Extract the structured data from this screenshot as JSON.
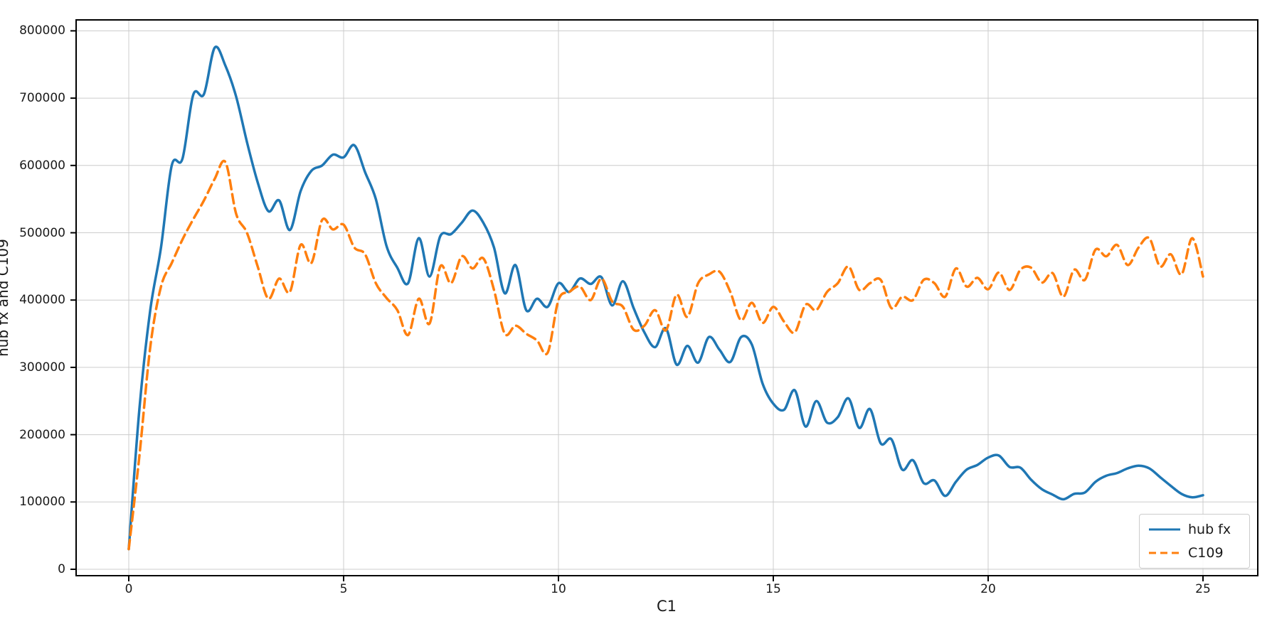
{
  "chart_data": {
    "type": "line",
    "title": "",
    "xlabel": "C1",
    "ylabel": "hub fx and C109",
    "grid": true,
    "legend_position": "lower right",
    "xticks": [
      0,
      5,
      10,
      15,
      20,
      25
    ],
    "xtick_labels": [
      "0",
      "5",
      "10",
      "15",
      "20",
      "25"
    ],
    "yticks": [
      0,
      100000,
      200000,
      300000,
      400000,
      500000,
      600000,
      700000,
      800000
    ],
    "ytick_labels": [
      "0",
      "100000",
      "200000",
      "300000",
      "400000",
      "500000",
      "600000",
      "700000",
      "800000"
    ],
    "xlim": [
      -1.2,
      26.3
    ],
    "ylim": [
      -10000,
      816000
    ],
    "x_start": 0,
    "x_step": 0.25,
    "series": [
      {
        "name": "hub fx",
        "color": "#1f77b4",
        "style": "solid",
        "values": [
          30000,
          240000,
          385000,
          478000,
          600000,
          610000,
          705000,
          706000,
          775000,
          748000,
          702000,
          635000,
          575000,
          532000,
          548000,
          504000,
          562000,
          592000,
          600000,
          616000,
          612000,
          630000,
          590000,
          550000,
          480000,
          448000,
          425000,
          492000,
          435000,
          495000,
          498000,
          515000,
          533000,
          515000,
          478000,
          410000,
          452000,
          385000,
          402000,
          390000,
          425000,
          412000,
          432000,
          424000,
          434000,
          392000,
          428000,
          388000,
          352000,
          330000,
          358000,
          304000,
          332000,
          307000,
          345000,
          326000,
          308000,
          345000,
          334000,
          276000,
          246000,
          237000,
          266000,
          212000,
          250000,
          218000,
          226000,
          254000,
          210000,
          238000,
          187000,
          193000,
          148000,
          162000,
          128000,
          132000,
          109000,
          130000,
          148000,
          155000,
          166000,
          169000,
          152000,
          151000,
          133000,
          119000,
          111000,
          104000,
          112000,
          114000,
          130000,
          139000,
          143000,
          150000,
          154000,
          150000,
          137000,
          124000,
          112000,
          107000,
          110000
        ]
      },
      {
        "name": "C109",
        "color": "#ff7f0e",
        "style": "dashed",
        "values": [
          30000,
          170000,
          330000,
          420000,
          455000,
          490000,
          520000,
          548000,
          580000,
          605000,
          528000,
          500000,
          450000,
          402000,
          432000,
          412000,
          482000,
          455000,
          519000,
          505000,
          512000,
          478000,
          468000,
          425000,
          403000,
          385000,
          348000,
          402000,
          365000,
          450000,
          425000,
          465000,
          447000,
          462000,
          415000,
          350000,
          362000,
          350000,
          340000,
          322000,
          400000,
          412000,
          420000,
          400000,
          432000,
          398000,
          390000,
          356000,
          362000,
          385000,
          355000,
          408000,
          375000,
          425000,
          438000,
          442000,
          412000,
          370000,
          396000,
          366000,
          390000,
          368000,
          352000,
          393000,
          385000,
          412000,
          425000,
          450000,
          415000,
          425000,
          430000,
          388000,
          405000,
          400000,
          430000,
          425000,
          405000,
          447000,
          420000,
          433000,
          416000,
          441000,
          415000,
          445000,
          448000,
          426000,
          440000,
          405000,
          445000,
          430000,
          475000,
          465000,
          482000,
          452000,
          478000,
          492000,
          450000,
          468000,
          438000,
          492000,
          435000
        ]
      }
    ]
  }
}
